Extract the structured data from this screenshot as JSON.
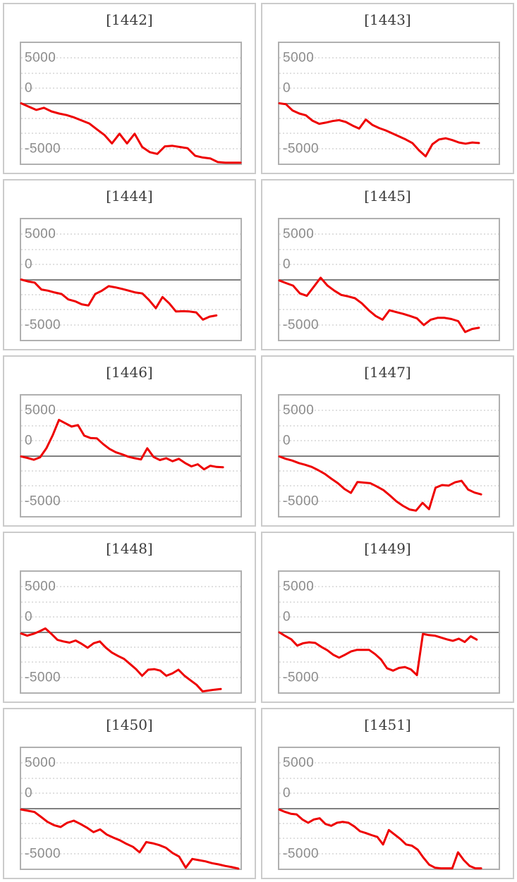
{
  "page": {
    "background": "#ffffff"
  },
  "styles": {
    "series_color": "#ee0000",
    "zero_line_color": "#808080",
    "grid_dot_color": "#e0e0e0",
    "plot_border_color": "#b0b0b0",
    "cell_border_color": "#cbcbcb",
    "tick_label_color": "#8c8c8c",
    "title_color": "#3a3a3a"
  },
  "axis": {
    "tick_labels": [
      "5000",
      "0",
      "-5000"
    ],
    "y_max": 10000,
    "y_min": -10000,
    "grid_step": 2500,
    "grid_style": "dotted",
    "zero_line": "solid"
  },
  "chart_data": [
    {
      "type": "line",
      "title": "[1442]",
      "ylim": [
        -10000,
        10000
      ],
      "x_end_frac": 1.0,
      "values": [
        0,
        -550,
        -1100,
        -750,
        -1350,
        -1700,
        -1950,
        -2350,
        -2850,
        -3350,
        -4300,
        -5250,
        -6650,
        -5050,
        -6650,
        -5050,
        -7250,
        -8100,
        -8400,
        -7150,
        -7050,
        -7250,
        -7450,
        -8700,
        -9000,
        -9150,
        -9750,
        -9850,
        -9850,
        -9850
      ]
    },
    {
      "type": "line",
      "title": "[1443]",
      "ylim": [
        -10000,
        10000
      ],
      "x_end_frac": 0.91,
      "values": [
        0,
        -150,
        -1200,
        -1700,
        -2000,
        -2900,
        -3400,
        -3200,
        -2950,
        -2800,
        -3100,
        -3700,
        -4200,
        -2700,
        -3600,
        -4100,
        -4500,
        -5000,
        -5500,
        -6000,
        -6600,
        -7800,
        -8800,
        -6800,
        -6000,
        -5800,
        -6100,
        -6500,
        -6700,
        -6500,
        -6600
      ]
    },
    {
      "type": "line",
      "title": "[1444]",
      "ylim": [
        -10000,
        10000
      ],
      "x_end_frac": 0.89,
      "values": [
        0,
        -300,
        -500,
        -1650,
        -1850,
        -2150,
        -2400,
        -3300,
        -3600,
        -4100,
        -4300,
        -2400,
        -1850,
        -1100,
        -1300,
        -1550,
        -1850,
        -2150,
        -2300,
        -3400,
        -4750,
        -2900,
        -3950,
        -5300,
        -5250,
        -5300,
        -5450,
        -6650,
        -6150,
        -5950
      ]
    },
    {
      "type": "line",
      "title": "[1445]",
      "ylim": [
        -10000,
        10000
      ],
      "x_end_frac": 0.91,
      "values": [
        -150,
        -600,
        -1000,
        -2300,
        -2700,
        -1200,
        300,
        -1000,
        -1850,
        -2550,
        -2800,
        -3100,
        -3950,
        -5100,
        -6050,
        -6650,
        -5100,
        -5400,
        -5700,
        -6050,
        -6450,
        -7550,
        -6650,
        -6350,
        -6350,
        -6550,
        -6900,
        -8700,
        -8200,
        -8000
      ]
    },
    {
      "type": "line",
      "title": "[1446]",
      "ylim": [
        -10000,
        10000
      ],
      "x_end_frac": 0.92,
      "values": [
        -100,
        -350,
        -650,
        -250,
        1250,
        3400,
        5950,
        5400,
        4850,
        5100,
        3350,
        2950,
        2900,
        1950,
        1150,
        600,
        250,
        -150,
        -400,
        -600,
        1250,
        -200,
        -700,
        -400,
        -900,
        -500,
        -1200,
        -1750,
        -1400,
        -2250,
        -1650,
        -1850,
        -1900
      ]
    },
    {
      "type": "line",
      "title": "[1447]",
      "ylim": [
        -10000,
        10000
      ],
      "x_end_frac": 0.92,
      "values": [
        -100,
        -500,
        -800,
        -1200,
        -1500,
        -1850,
        -2400,
        -3000,
        -3800,
        -4550,
        -5500,
        -6150,
        -4350,
        -4450,
        -4550,
        -5100,
        -5700,
        -6600,
        -7550,
        -8300,
        -8900,
        -9100,
        -7800,
        -8850,
        -5300,
        -4850,
        -4950,
        -4400,
        -4150,
        -5600,
        -6100,
        -6400
      ]
    },
    {
      "type": "line",
      "title": "[1448]",
      "ylim": [
        -10000,
        10000
      ],
      "x_end_frac": 0.91,
      "values": [
        -250,
        -600,
        -300,
        100,
        600,
        -300,
        -1300,
        -1550,
        -1750,
        -1400,
        -1950,
        -2600,
        -1850,
        -1550,
        -2600,
        -3400,
        -3950,
        -4450,
        -5300,
        -6150,
        -7250,
        -6250,
        -6150,
        -6400,
        -7250,
        -6850,
        -6250,
        -7250,
        -8000,
        -8750,
        -9850,
        -9700,
        -9550,
        -9450
      ]
    },
    {
      "type": "line",
      "title": "[1449]",
      "ylim": [
        -10000,
        10000
      ],
      "x_end_frac": 0.9,
      "values": [
        -50,
        -650,
        -1200,
        -2250,
        -1850,
        -1700,
        -1800,
        -2450,
        -3000,
        -3750,
        -4250,
        -3750,
        -3200,
        -2950,
        -2950,
        -2950,
        -3650,
        -4550,
        -6000,
        -6400,
        -5950,
        -5800,
        -6200,
        -7150,
        -300,
        -500,
        -600,
        -900,
        -1200,
        -1450,
        -1100,
        -1650,
        -700,
        -1250
      ]
    },
    {
      "type": "line",
      "title": "[1450]",
      "ylim": [
        -10000,
        10000
      ],
      "x_end_frac": 0.99,
      "values": [
        -200,
        -400,
        -600,
        -1400,
        -2250,
        -2800,
        -3100,
        -2400,
        -2050,
        -2600,
        -3200,
        -3950,
        -3500,
        -4350,
        -4850,
        -5300,
        -5900,
        -6400,
        -7300,
        -5600,
        -5800,
        -6100,
        -6550,
        -7400,
        -8000,
        -9850,
        -8400,
        -8600,
        -8800,
        -9100,
        -9300,
        -9550,
        -9750,
        -10000
      ]
    },
    {
      "type": "line",
      "title": "[1451]",
      "ylim": [
        -10000,
        10000
      ],
      "x_end_frac": 0.92,
      "values": [
        -200,
        -600,
        -900,
        -1000,
        -1850,
        -2400,
        -1850,
        -1650,
        -2600,
        -2900,
        -2400,
        -2250,
        -2400,
        -3000,
        -3800,
        -4100,
        -4450,
        -4750,
        -6000,
        -3600,
        -4350,
        -5100,
        -6000,
        -6200,
        -6850,
        -8200,
        -9350,
        -9850,
        -9950,
        -9950,
        -9950,
        -7300,
        -8600,
        -9550,
        -9950,
        -9950
      ]
    }
  ]
}
